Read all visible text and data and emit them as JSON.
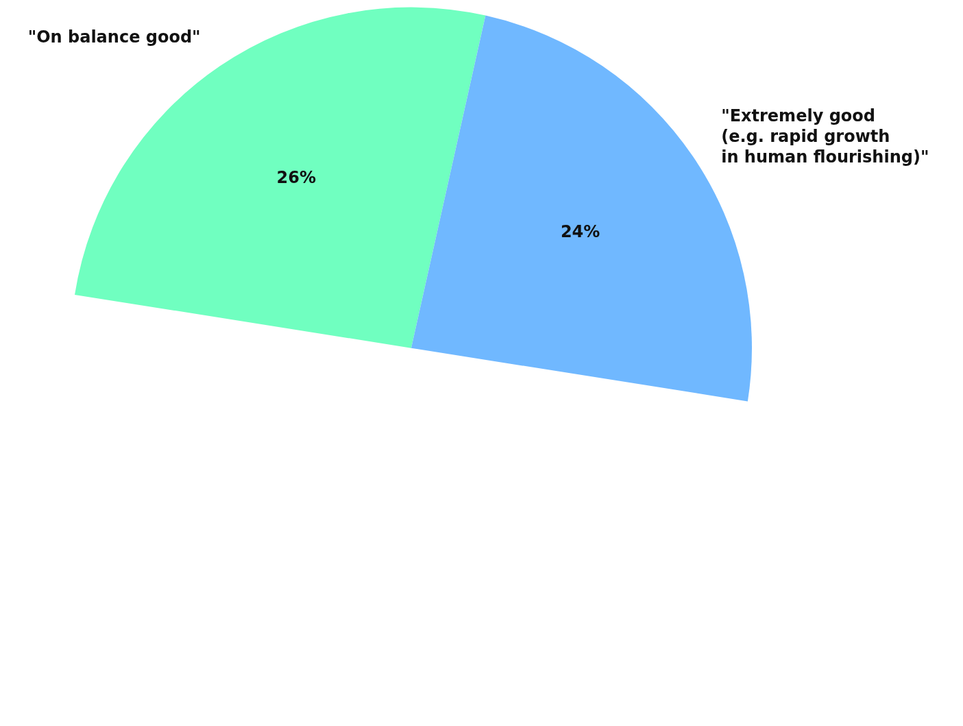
{
  "chart_data": {
    "type": "pie",
    "categories": [
      "\"On balance good\"",
      "\"Extremely good\n(e.g. rapid growth\nin human flourishing)\""
    ],
    "values": [
      26,
      24
    ],
    "colors": [
      "#70ffc0",
      "#70b8ff"
    ],
    "value_labels": [
      "26%",
      "24%"
    ]
  }
}
